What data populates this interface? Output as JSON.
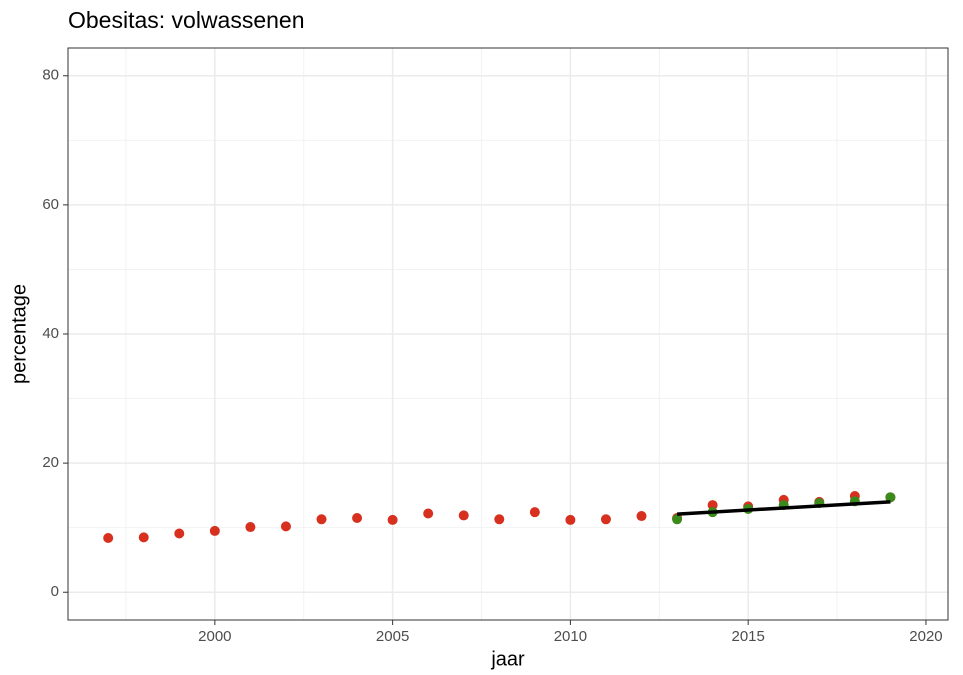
{
  "chart_data": {
    "type": "scatter",
    "title": "Obesitas: volwassenen",
    "xlabel": "jaar",
    "ylabel": "percentage",
    "xlim": [
      1995.87,
      2020.62
    ],
    "ylim": [
      -4.3,
      84.3
    ],
    "xticks": [
      2000,
      2005,
      2010,
      2015,
      2020
    ],
    "yticks": [
      0,
      20,
      40,
      60,
      80
    ],
    "grid": true,
    "series": [
      {
        "color": "#d7301f",
        "mode": "points",
        "x": [
          1997,
          1998,
          1999,
          2000,
          2001,
          2002,
          2003,
          2004,
          2005,
          2006,
          2007,
          2008,
          2009,
          2010,
          2011,
          2012,
          2013,
          2014,
          2015,
          2016,
          2017,
          2018,
          2019
        ],
        "values": [
          8.4,
          8.5,
          9.1,
          9.5,
          10.1,
          10.2,
          11.3,
          11.5,
          11.2,
          12.2,
          11.9,
          11.3,
          12.4,
          11.2,
          11.3,
          11.8,
          11.5,
          13.5,
          13.3,
          14.3,
          14.0,
          14.9,
          14.7
        ]
      },
      {
        "color": "#3a8a1c",
        "mode": "points",
        "x": [
          2013,
          2014,
          2015,
          2016,
          2017,
          2018,
          2019
        ],
        "values": [
          11.3,
          12.4,
          12.9,
          13.5,
          13.8,
          14.1,
          14.7
        ]
      },
      {
        "color": "#000000",
        "mode": "line",
        "x": [
          2013,
          2019
        ],
        "values": [
          12.1,
          14.0
        ]
      }
    ]
  }
}
